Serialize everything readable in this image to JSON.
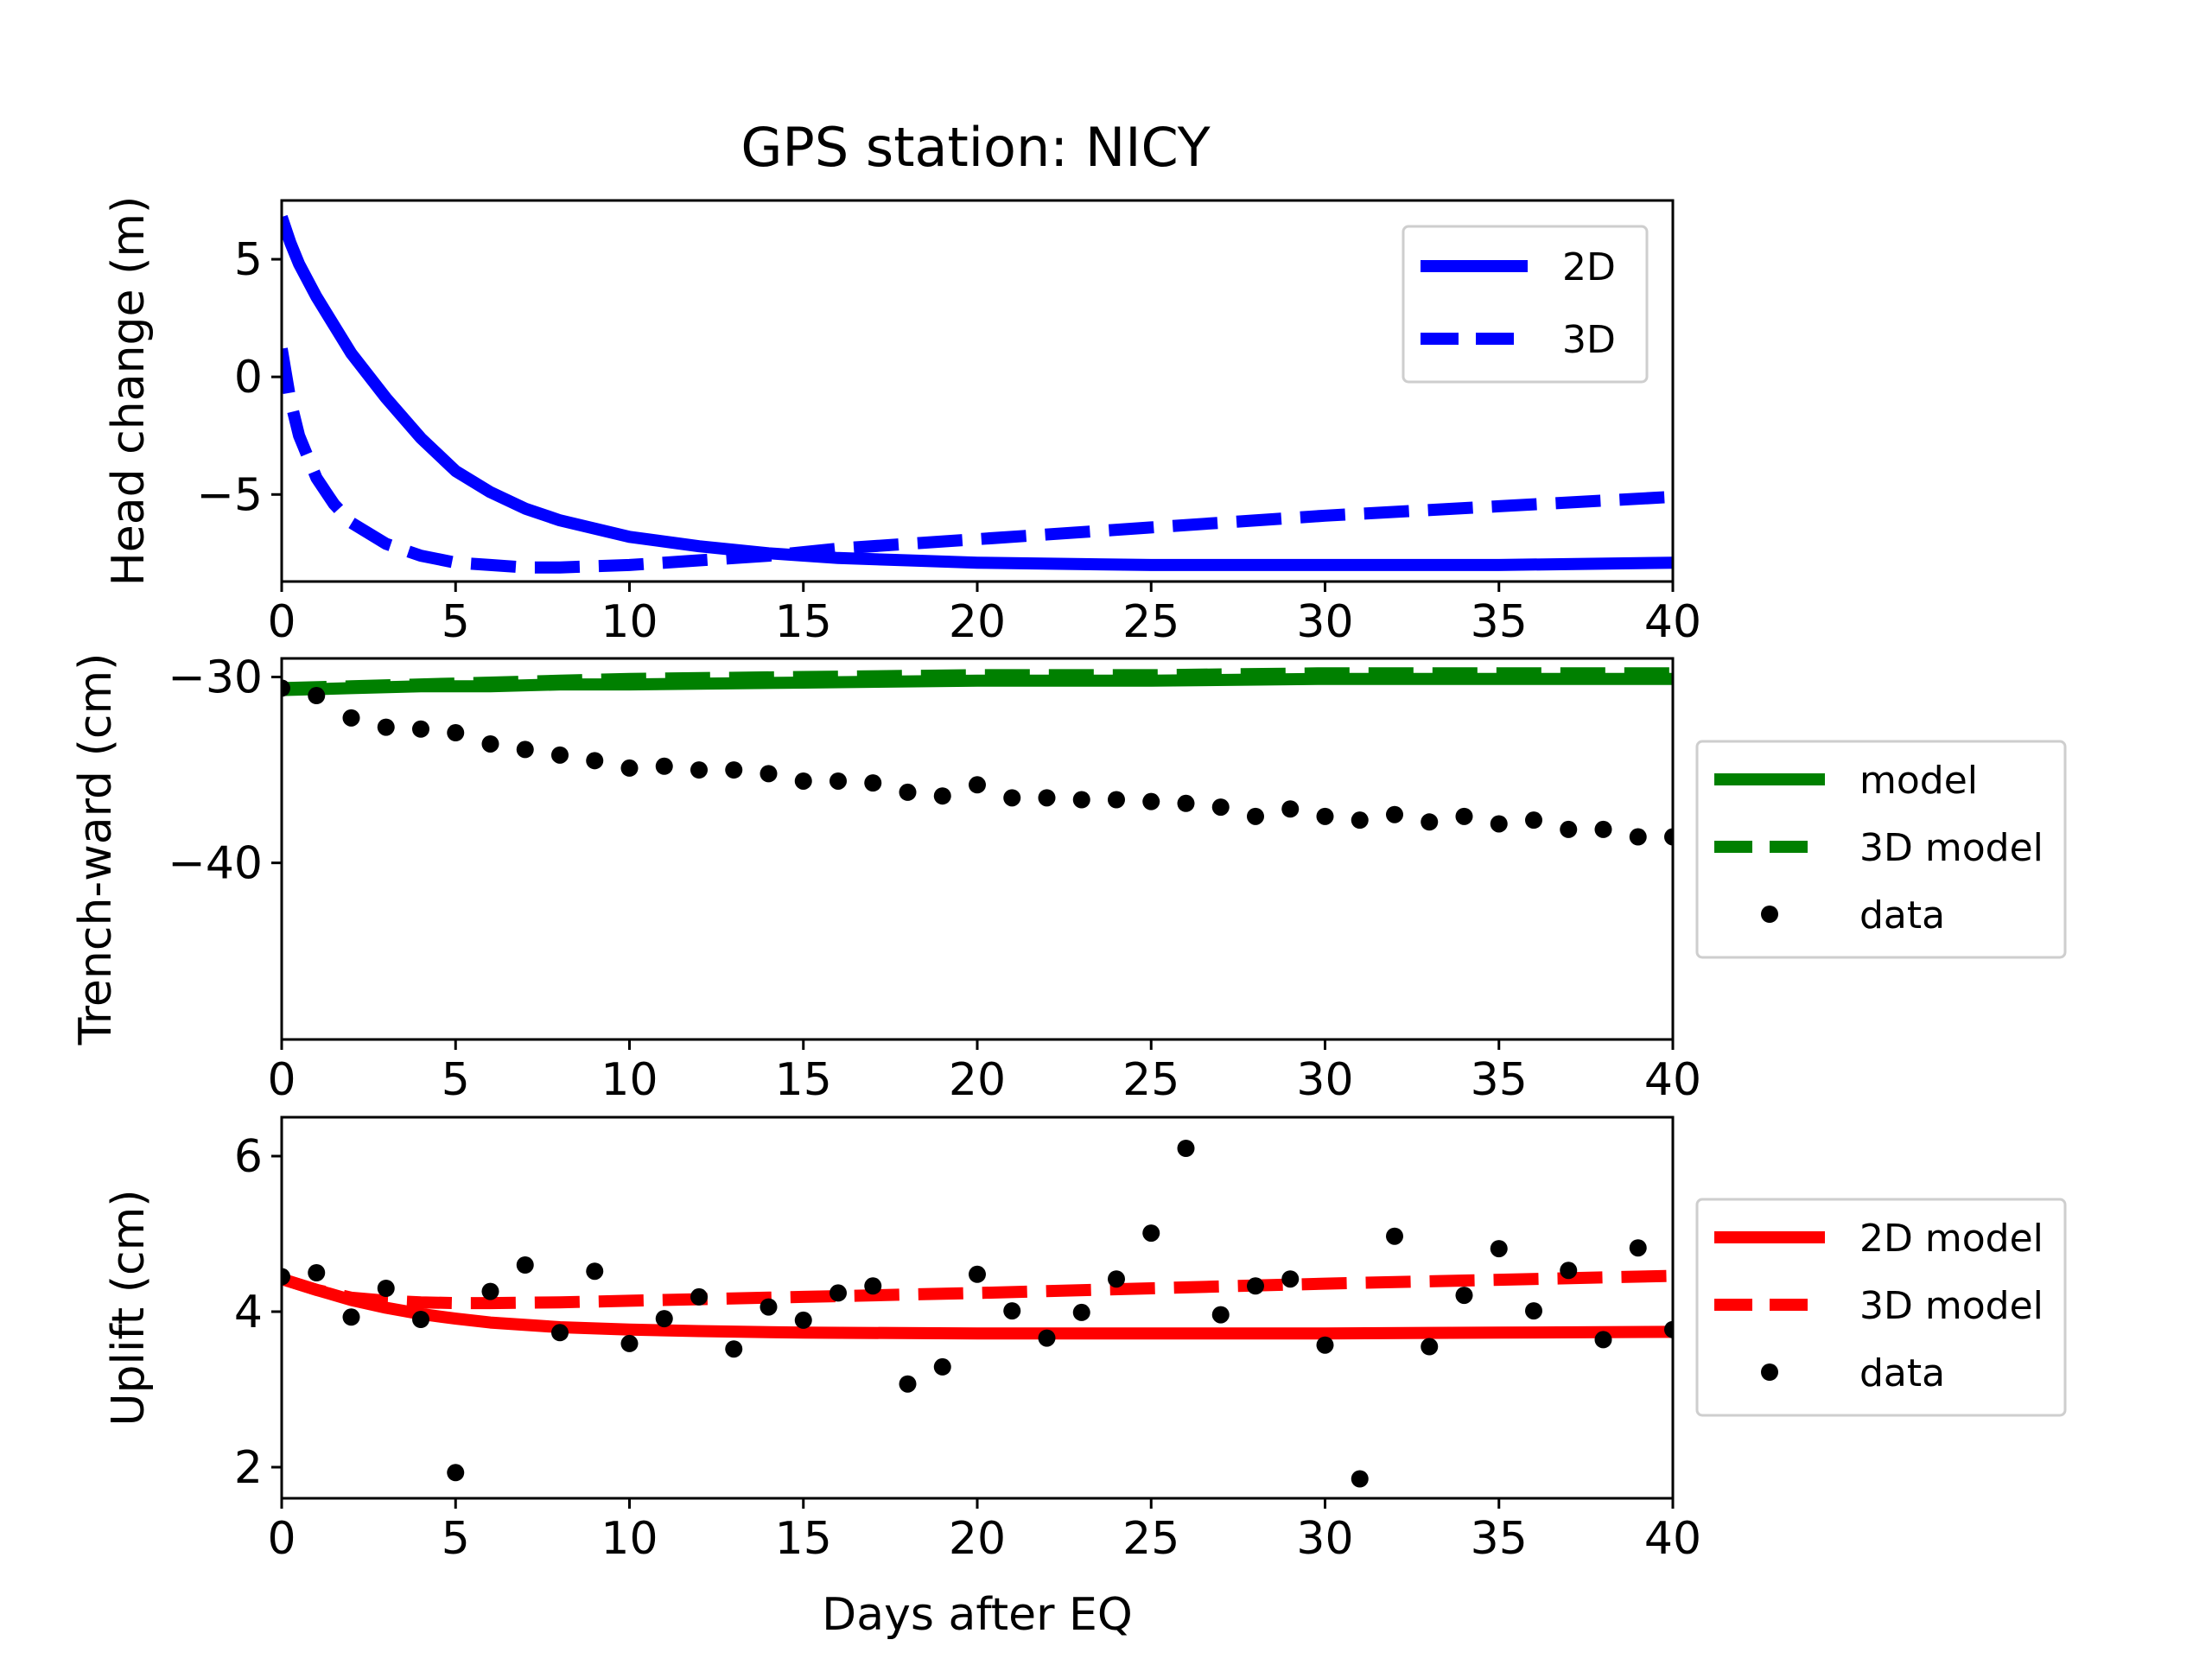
{
  "figure_title": "GPS station: NICY",
  "chart_data": [
    {
      "type": "line",
      "id": "head",
      "title": "GPS station: NICY",
      "xlabel": "",
      "ylabel": "Head change (m)",
      "xlim": [
        0,
        40
      ],
      "ylim": [
        -8.7,
        7.5
      ],
      "xticks": [
        "0",
        "5",
        "10",
        "15",
        "20",
        "25",
        "30",
        "35",
        "40"
      ],
      "xtick_values": [
        0,
        5,
        10,
        15,
        20,
        25,
        30,
        35,
        40
      ],
      "yticks": [
        "−5",
        "0",
        "5"
      ],
      "ytick_values": [
        -5,
        0,
        5
      ],
      "legend_position": "top-right",
      "series": [
        {
          "name": "2D",
          "style": "solid",
          "color": "#0000ff",
          "x": [
            0,
            0.25,
            0.5,
            1,
            1.5,
            2,
            3,
            4,
            5,
            6,
            7,
            8,
            10,
            12,
            14,
            16,
            18,
            20,
            25,
            30,
            35,
            40
          ],
          "y": [
            6.8,
            5.7,
            4.8,
            3.4,
            2.2,
            1.0,
            -0.9,
            -2.6,
            -4.0,
            -4.9,
            -5.6,
            -6.1,
            -6.8,
            -7.2,
            -7.5,
            -7.7,
            -7.8,
            -7.9,
            -8.0,
            -8.0,
            -8.0,
            -7.9
          ]
        },
        {
          "name": "3D",
          "style": "dashed",
          "color": "#0000ff",
          "x": [
            0,
            0.25,
            0.5,
            1,
            1.5,
            2,
            3,
            4,
            5,
            6,
            7,
            8,
            10,
            12,
            14,
            16,
            18,
            20,
            25,
            30,
            35,
            40
          ],
          "y": [
            1.2,
            -1.0,
            -2.5,
            -4.3,
            -5.4,
            -6.2,
            -7.1,
            -7.6,
            -7.9,
            -8.0,
            -8.1,
            -8.1,
            -8.0,
            -7.8,
            -7.6,
            -7.3,
            -7.1,
            -6.9,
            -6.4,
            -5.9,
            -5.5,
            -5.1
          ]
        }
      ]
    },
    {
      "type": "line",
      "id": "trench",
      "title": "",
      "xlabel": "",
      "ylabel": "Trench-ward (cm)",
      "xlim": [
        0,
        40
      ],
      "ylim": [
        -49.5,
        -29
      ],
      "xticks": [
        "0",
        "5",
        "10",
        "15",
        "20",
        "25",
        "30",
        "35",
        "40"
      ],
      "xtick_values": [
        0,
        5,
        10,
        15,
        20,
        25,
        30,
        35,
        40
      ],
      "yticks": [
        "−30",
        "−40"
      ],
      "ytick_values": [
        -30,
        -40
      ],
      "legend_position": "outside-right",
      "series": [
        {
          "name": "model",
          "style": "solid",
          "color": "#008000",
          "x": [
            0,
            2,
            4,
            6,
            8,
            10,
            15,
            20,
            25,
            30,
            35,
            40
          ],
          "y": [
            -30.7,
            -30.6,
            -30.5,
            -30.5,
            -30.4,
            -30.4,
            -30.3,
            -30.2,
            -30.2,
            -30.1,
            -30.1,
            -30.1
          ]
        },
        {
          "name": "3D model",
          "style": "dashed",
          "color": "#008000",
          "x": [
            0,
            2,
            4,
            6,
            8,
            10,
            15,
            20,
            25,
            30,
            35,
            40
          ],
          "y": [
            -30.6,
            -30.5,
            -30.4,
            -30.3,
            -30.2,
            -30.1,
            -30.0,
            -29.9,
            -29.9,
            -29.8,
            -29.8,
            -29.8
          ]
        },
        {
          "name": "data",
          "style": "points",
          "color": "#000000",
          "x": [
            0,
            1,
            2,
            3,
            4,
            5,
            6,
            7,
            8,
            9,
            10,
            11,
            12,
            13,
            14,
            15,
            16,
            17,
            18,
            19,
            20,
            21,
            22,
            23,
            24,
            25,
            26,
            27,
            28,
            29,
            30,
            31,
            32,
            33,
            34,
            35,
            36,
            37,
            38,
            39,
            40
          ],
          "y": [
            -30.6,
            -31.0,
            -32.2,
            -32.7,
            -32.8,
            -33.0,
            -33.6,
            -33.9,
            -34.2,
            -34.5,
            -34.9,
            -34.8,
            -35.0,
            -35.0,
            -35.2,
            -35.6,
            -35.6,
            -35.7,
            -36.2,
            -36.4,
            -35.8,
            -36.5,
            -36.5,
            -36.6,
            -36.6,
            -36.7,
            -36.8,
            -37.0,
            -37.5,
            -37.1,
            -37.5,
            -37.7,
            -37.4,
            -37.8,
            -37.5,
            -37.9,
            -37.7,
            -38.2,
            -38.2,
            -38.6,
            -38.6
          ]
        }
      ]
    },
    {
      "type": "line",
      "id": "uplift",
      "title": "",
      "xlabel": "Days after EQ",
      "ylabel": "Uplift (cm)",
      "xlim": [
        0,
        40
      ],
      "ylim": [
        1.6,
        6.5
      ],
      "xticks": [
        "0",
        "5",
        "10",
        "15",
        "20",
        "25",
        "30",
        "35",
        "40"
      ],
      "xtick_values": [
        0,
        5,
        10,
        15,
        20,
        25,
        30,
        35,
        40
      ],
      "yticks": [
        "2",
        "4",
        "6"
      ],
      "ytick_values": [
        2,
        4,
        6
      ],
      "legend_position": "outside-right",
      "series": [
        {
          "name": "2D model",
          "style": "solid",
          "color": "#ff0000",
          "x": [
            0,
            1,
            2,
            3,
            4,
            5,
            6,
            8,
            10,
            12,
            15,
            20,
            25,
            30,
            35,
            40
          ],
          "y": [
            4.42,
            4.28,
            4.15,
            4.05,
            3.97,
            3.91,
            3.86,
            3.8,
            3.77,
            3.75,
            3.73,
            3.72,
            3.72,
            3.72,
            3.73,
            3.74
          ]
        },
        {
          "name": "3D model",
          "style": "dashed",
          "color": "#ff0000",
          "x": [
            0,
            1,
            2,
            3,
            4,
            5,
            6,
            8,
            10,
            12,
            15,
            20,
            25,
            30,
            35,
            40
          ],
          "y": [
            4.42,
            4.28,
            4.18,
            4.14,
            4.12,
            4.11,
            4.11,
            4.12,
            4.14,
            4.16,
            4.19,
            4.24,
            4.3,
            4.36,
            4.41,
            4.46
          ]
        },
        {
          "name": "data",
          "style": "points",
          "color": "#000000",
          "x": [
            0,
            1,
            2,
            3,
            4,
            5,
            6,
            7,
            8,
            9,
            10,
            11,
            12,
            13,
            14,
            15,
            16,
            17,
            18,
            19,
            20,
            21,
            22,
            23,
            24,
            25,
            26,
            27,
            28,
            29,
            30,
            31,
            32,
            33,
            34,
            35,
            36,
            37,
            38,
            39,
            40
          ],
          "y": [
            4.45,
            4.5,
            3.93,
            4.3,
            3.9,
            1.93,
            4.26,
            4.6,
            3.73,
            4.52,
            3.59,
            3.91,
            4.19,
            3.52,
            4.06,
            3.89,
            4.24,
            4.33,
            3.07,
            3.29,
            4.48,
            4.01,
            3.66,
            3.99,
            4.42,
            5.01,
            6.1,
            3.96,
            4.33,
            4.42,
            3.57,
            1.85,
            4.97,
            3.55,
            4.21,
            4.81,
            4.01,
            4.53,
            3.64,
            4.82,
            3.77
          ]
        }
      ]
    }
  ]
}
